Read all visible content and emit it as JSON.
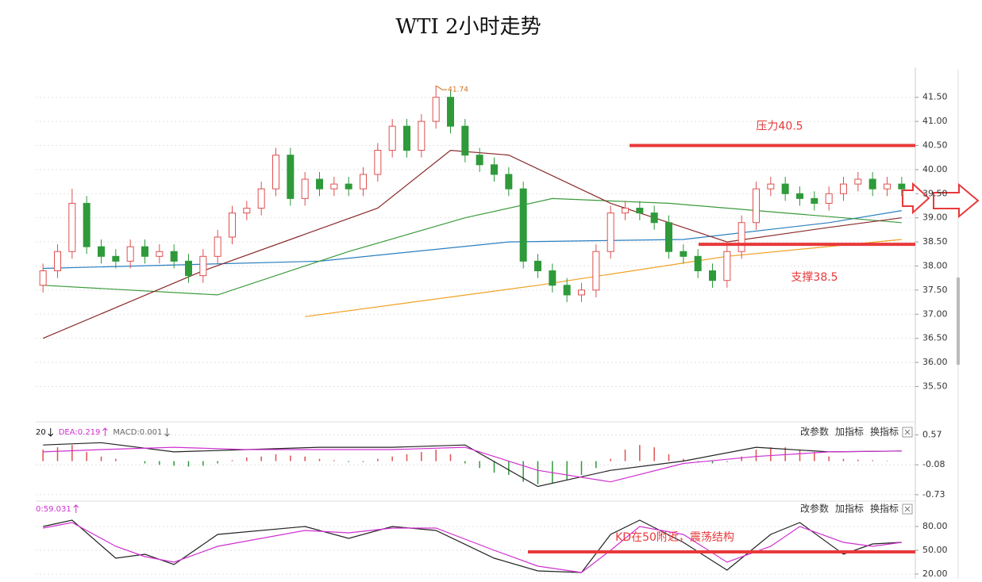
{
  "title": "WTI 2小时走势",
  "chart_data": [
    {
      "type": "candlestick",
      "ylim": [
        34.8,
        42.12
      ],
      "yticks": [
        {
          "value": 35.5,
          "label": "35.50"
        },
        {
          "value": 36,
          "label": "36.00"
        },
        {
          "value": 36.5,
          "label": "36.50"
        },
        {
          "value": 37,
          "label": "37.00"
        },
        {
          "value": 37.5,
          "label": "37.50"
        },
        {
          "value": 38,
          "label": "38.00"
        },
        {
          "value": 38.5,
          "label": "38.50"
        },
        {
          "value": 39,
          "label": "39.00"
        },
        {
          "value": 39.5,
          "label": "39.50"
        },
        {
          "value": 40,
          "label": "40.00"
        },
        {
          "value": 40.5,
          "label": "40.50"
        },
        {
          "value": 41,
          "label": "41.00"
        },
        {
          "value": 41.5,
          "label": "41.50"
        }
      ],
      "grid": true,
      "up_color": "#e0504f",
      "down_color": "#2e9a3a",
      "candles": {
        "open": [
          37.6,
          37.9,
          38.3,
          39.3,
          38.4,
          38.2,
          38.1,
          38.4,
          38.2,
          38.3,
          38.1,
          37.8,
          38.2,
          38.6,
          39.1,
          39.2,
          39.6,
          40.3,
          39.4,
          39.8,
          39.6,
          39.7,
          39.6,
          39.9,
          40.4,
          40.9,
          40.4,
          41.0,
          41.5,
          40.9,
          40.3,
          40.1,
          39.9,
          39.6,
          38.1,
          37.9,
          37.6,
          37.4,
          37.5,
          38.3,
          39.1,
          39.2,
          39.1,
          38.9,
          38.3,
          38.2,
          37.9,
          37.7,
          38.3,
          38.9,
          39.6,
          39.7,
          39.5,
          39.4,
          39.3,
          39.5,
          39.7,
          39.8,
          39.6,
          39.7
        ],
        "high": [
          38.05,
          38.45,
          39.6,
          39.45,
          38.55,
          38.35,
          38.55,
          38.55,
          38.45,
          38.45,
          38.25,
          38.35,
          38.75,
          39.25,
          39.35,
          39.75,
          40.45,
          40.45,
          39.95,
          39.95,
          39.85,
          39.85,
          40.05,
          40.55,
          41.05,
          41.05,
          41.15,
          41.74,
          41.65,
          41.05,
          40.45,
          40.25,
          40.05,
          39.75,
          38.25,
          38.05,
          37.75,
          37.65,
          38.45,
          39.25,
          39.35,
          39.35,
          39.25,
          39.05,
          38.45,
          38.35,
          38.05,
          38.45,
          39.05,
          39.75,
          39.85,
          39.85,
          39.65,
          39.55,
          39.65,
          39.85,
          39.95,
          39.95,
          39.85,
          39.85
        ],
        "low": [
          37.45,
          37.75,
          38.15,
          38.25,
          38.05,
          37.95,
          37.95,
          38.05,
          38.05,
          37.95,
          37.65,
          37.65,
          38.05,
          38.45,
          38.95,
          39.05,
          39.45,
          39.25,
          39.25,
          39.45,
          39.45,
          39.45,
          39.45,
          39.75,
          40.25,
          40.25,
          40.25,
          40.85,
          40.75,
          40.15,
          39.95,
          39.75,
          39.45,
          37.95,
          37.75,
          37.45,
          37.25,
          37.25,
          37.35,
          38.15,
          38.95,
          38.95,
          38.75,
          38.15,
          38.05,
          37.75,
          37.55,
          37.55,
          38.15,
          38.75,
          39.45,
          39.35,
          39.25,
          39.15,
          39.15,
          39.35,
          39.55,
          39.45,
          39.45,
          39.45
        ],
        "close": [
          37.9,
          38.3,
          39.3,
          38.4,
          38.2,
          38.1,
          38.4,
          38.2,
          38.3,
          38.1,
          37.8,
          38.2,
          38.6,
          39.1,
          39.2,
          39.6,
          40.3,
          39.4,
          39.8,
          39.6,
          39.7,
          39.6,
          39.9,
          40.4,
          40.9,
          40.4,
          41.0,
          41.5,
          40.9,
          40.3,
          40.1,
          39.9,
          39.6,
          38.1,
          37.9,
          37.6,
          37.4,
          37.5,
          38.3,
          39.1,
          39.2,
          39.1,
          38.9,
          38.3,
          38.2,
          37.9,
          37.7,
          38.3,
          38.9,
          39.6,
          39.7,
          39.5,
          39.4,
          39.3,
          39.5,
          39.7,
          39.8,
          39.6,
          39.7,
          39.6
        ]
      },
      "lines": [
        {
          "color": "#2a7fc0",
          "x": [
            0,
            19,
            32,
            44,
            54,
            59
          ],
          "values": [
            37.95,
            38.1,
            38.5,
            38.55,
            38.9,
            39.15
          ]
        },
        {
          "color": "#3c9a3c",
          "x": [
            0,
            12,
            21,
            29,
            35,
            43,
            51,
            59
          ],
          "values": [
            37.6,
            37.4,
            38.3,
            39.0,
            39.4,
            39.3,
            39.1,
            38.9
          ]
        },
        {
          "color": "#f0a020",
          "x": [
            18,
            34,
            47,
            59
          ],
          "values": [
            36.95,
            37.6,
            38.2,
            38.55
          ]
        },
        {
          "color": "#8a2a2a",
          "x": [
            0,
            11,
            23,
            28,
            32,
            39,
            47,
            54,
            59
          ],
          "values": [
            36.5,
            37.9,
            39.2,
            40.4,
            40.3,
            39.3,
            38.5,
            38.8,
            39.0
          ]
        }
      ],
      "levels": [
        {
          "value": 40.5,
          "label": "压力40.5"
        },
        {
          "value": 38.45,
          "label": "支撑38.5"
        }
      ],
      "level_color": "#e8393a"
    },
    {
      "type": "macd",
      "header": [
        "20",
        "DEA:0.219",
        "MACD:0.001"
      ],
      "ylim": [
        -0.8,
        0.75
      ],
      "yticks": [
        0.57,
        -0.08,
        -0.73
      ],
      "grid": true,
      "up_color": "#e0504f",
      "down_color": "#2e9a3a",
      "histogram": [
        0.25,
        0.3,
        0.35,
        0.2,
        0.1,
        0.05,
        0,
        -0.05,
        -0.08,
        -0.1,
        -0.12,
        -0.1,
        -0.05,
        0.02,
        0.08,
        0.1,
        0.15,
        0.12,
        0.1,
        0.05,
        0.02,
        -0.02,
        -0.02,
        0.05,
        0.1,
        0.15,
        0.2,
        0.25,
        0.15,
        -0.05,
        -0.15,
        -0.25,
        -0.3,
        -0.45,
        -0.5,
        -0.48,
        -0.4,
        -0.3,
        -0.15,
        0.05,
        0.25,
        0.35,
        0.3,
        0.15,
        0.05,
        -0.02,
        -0.05,
        -0.02,
        0.1,
        0.25,
        0.3,
        0.3,
        0.25,
        0.2,
        0.1,
        0.05,
        0.03,
        0.02,
        0.01,
        0
      ],
      "lines": [
        {
          "color": "#222222",
          "x": [
            0,
            4,
            9,
            14,
            19,
            24,
            29,
            34,
            39,
            44,
            49,
            54,
            59
          ],
          "values": [
            0.35,
            0.4,
            0.2,
            0.25,
            0.3,
            0.3,
            0.35,
            -0.55,
            -0.2,
            0,
            0.3,
            0.2,
            0.22
          ]
        },
        {
          "color": "#d030d0",
          "x": [
            0,
            4,
            9,
            14,
            19,
            24,
            29,
            34,
            39,
            44,
            49,
            54,
            59
          ],
          "values": [
            0.2,
            0.25,
            0.3,
            0.25,
            0.25,
            0.25,
            0.3,
            -0.2,
            -0.45,
            -0.05,
            0.1,
            0.2,
            0.22
          ]
        }
      ],
      "buttons": [
        "改参数",
        "加指标",
        "换指标"
      ]
    },
    {
      "type": "kd",
      "header": [
        "0:59.031"
      ],
      "ylim": [
        14,
        109
      ],
      "yticks": [
        {
          "value": 80,
          "label": "80.00"
        },
        {
          "value": 50,
          "label": "50.00"
        },
        {
          "value": 20,
          "label": "20.00"
        }
      ],
      "grid": true,
      "lines": [
        {
          "color": "#222222",
          "x": [
            0,
            2,
            5,
            7,
            9,
            12,
            18,
            21,
            24,
            27,
            31,
            34,
            37,
            39,
            41,
            44,
            47,
            50,
            52,
            55,
            57,
            59
          ],
          "values": [
            80,
            88,
            40,
            45,
            32,
            70,
            80,
            65,
            80,
            75,
            40,
            24,
            22,
            70,
            88,
            60,
            25,
            70,
            85,
            45,
            58,
            60
          ]
        },
        {
          "color": "#d030d0",
          "x": [
            0,
            2,
            5,
            7,
            9,
            12,
            18,
            21,
            24,
            27,
            31,
            34,
            37,
            39,
            41,
            44,
            47,
            50,
            52,
            55,
            57,
            59
          ],
          "values": [
            78,
            85,
            55,
            42,
            35,
            55,
            75,
            72,
            78,
            78,
            50,
            30,
            22,
            50,
            80,
            70,
            35,
            55,
            80,
            60,
            55,
            60
          ]
        }
      ],
      "levels": [
        {
          "value": 48,
          "label": "KD在50附近，震荡结构"
        }
      ],
      "level_color": "#e8393a",
      "buttons": [
        "改参数",
        "加指标",
        "换指标"
      ]
    }
  ]
}
